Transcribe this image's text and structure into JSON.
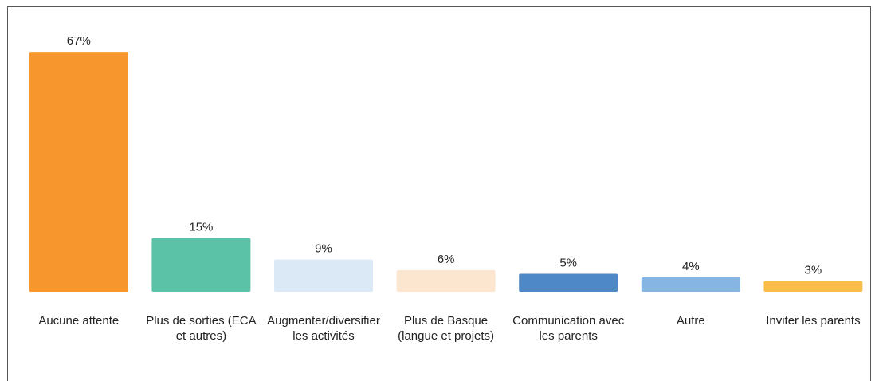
{
  "chart_data": {
    "type": "bar",
    "categories": [
      "Aucune attente",
      "Plus de sorties (ECA et autres)",
      "Augmenter/diversifier les activités",
      "Plus de Basque (langue et projets)",
      "Communication avec les parents",
      "Autre",
      "Inviter les parents"
    ],
    "values": [
      67,
      15,
      9,
      6,
      5,
      4,
      3
    ],
    "value_labels": [
      "67%",
      "15%",
      "9%",
      "6%",
      "5%",
      "4%",
      "3%"
    ],
    "colors": [
      "#f7962c",
      "#5bc2a8",
      "#dbe9f6",
      "#fde6cf",
      "#4e88c7",
      "#86b4e3",
      "#fbbd4a"
    ]
  }
}
